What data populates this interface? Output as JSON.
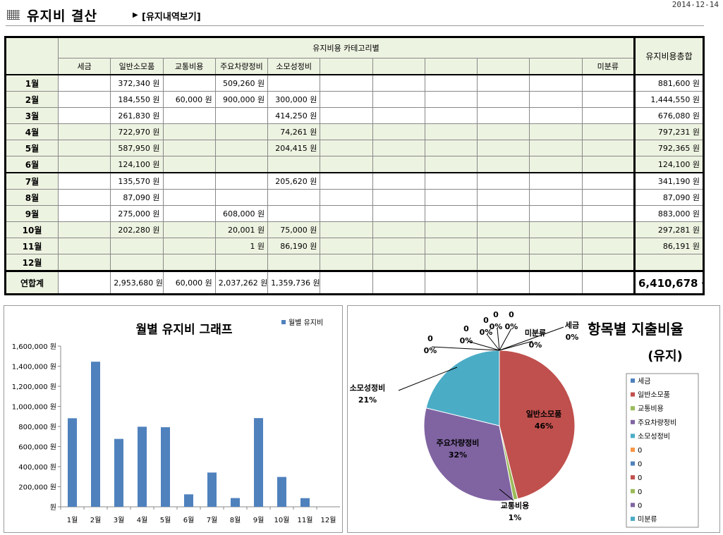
{
  "date": "2014-12-14",
  "header": {
    "title": "유지비 결산",
    "link": "[유지내역보기]"
  },
  "table": {
    "category_group": "유지비용 카테고리별",
    "total_header": "유지비용총합",
    "columns": [
      "세금",
      "일반소모품",
      "교통비용",
      "주요차량정비",
      "소모성정비",
      "",
      "",
      "",
      "",
      "",
      "미분류"
    ],
    "rows": [
      {
        "month": "1월",
        "cells": [
          "",
          "372,340 원",
          "",
          "509,260 원",
          "",
          "",
          "",
          "",
          "",
          "",
          ""
        ],
        "total": "881,600 원"
      },
      {
        "month": "2월",
        "cells": [
          "",
          "184,550 원",
          "60,000 원",
          "900,000 원",
          "300,000 원",
          "",
          "",
          "",
          "",
          "",
          ""
        ],
        "total": "1,444,550 원"
      },
      {
        "month": "3월",
        "cells": [
          "",
          "261,830 원",
          "",
          "",
          "414,250 원",
          "",
          "",
          "",
          "",
          "",
          ""
        ],
        "total": "676,080 원"
      },
      {
        "month": "4월",
        "cells": [
          "",
          "722,970 원",
          "",
          "",
          "74,261 원",
          "",
          "",
          "",
          "",
          "",
          ""
        ],
        "total": "797,231 원"
      },
      {
        "month": "5월",
        "cells": [
          "",
          "587,950 원",
          "",
          "",
          "204,415 원",
          "",
          "",
          "",
          "",
          "",
          ""
        ],
        "total": "792,365 원"
      },
      {
        "month": "6월",
        "cells": [
          "",
          "124,100 원",
          "",
          "",
          "",
          "",
          "",
          "",
          "",
          "",
          ""
        ],
        "total": "124,100 원"
      },
      {
        "month": "7월",
        "cells": [
          "",
          "135,570 원",
          "",
          "",
          "205,620 원",
          "",
          "",
          "",
          "",
          "",
          ""
        ],
        "total": "341,190 원"
      },
      {
        "month": "8월",
        "cells": [
          "",
          "87,090 원",
          "",
          "",
          "",
          "",
          "",
          "",
          "",
          "",
          ""
        ],
        "total": "87,090 원"
      },
      {
        "month": "9월",
        "cells": [
          "",
          "275,000 원",
          "",
          "608,000 원",
          "",
          "",
          "",
          "",
          "",
          "",
          ""
        ],
        "total": "883,000 원"
      },
      {
        "month": "10월",
        "cells": [
          "",
          "202,280 원",
          "",
          "20,001 원",
          "75,000 원",
          "",
          "",
          "",
          "",
          "",
          ""
        ],
        "total": "297,281 원"
      },
      {
        "month": "11월",
        "cells": [
          "",
          "",
          "",
          "1 원",
          "86,190 원",
          "",
          "",
          "",
          "",
          "",
          ""
        ],
        "total": "86,191 원"
      },
      {
        "month": "12월",
        "cells": [
          "",
          "",
          "",
          "",
          "",
          "",
          "",
          "",
          "",
          "",
          ""
        ],
        "total": ""
      }
    ],
    "total_row": {
      "label": "연합계",
      "cells": [
        "",
        "2,953,680 원",
        "60,000 원",
        "2,037,262 원",
        "1,359,736 원",
        "",
        "",
        "",
        "",
        "",
        ""
      ],
      "total": "6,410,678 원"
    }
  },
  "chart_data": [
    {
      "type": "bar",
      "title": "월별 유지비 그래프",
      "legend": "월별 유지비",
      "legend_position": "top-right",
      "categories": [
        "1월",
        "2월",
        "3월",
        "4월",
        "5월",
        "6월",
        "7월",
        "8월",
        "9월",
        "10월",
        "11월",
        "12월"
      ],
      "values": [
        881600,
        1444550,
        676080,
        797231,
        792365,
        124100,
        341190,
        87090,
        883000,
        297281,
        86191,
        0
      ],
      "ylim": [
        0,
        1600000
      ],
      "yticks": [
        "원",
        "200,000 원",
        "400,000 원",
        "600,000 원",
        "800,000 원",
        "1,000,000 원",
        "1,200,000 원",
        "1,400,000 원",
        "1,600,000 원"
      ],
      "color": "#4f81bd",
      "grid": false
    },
    {
      "type": "pie",
      "title_line1": "항목별 지출비율",
      "title_line2": "(유지)",
      "slices": [
        {
          "name": "세금",
          "value": 0,
          "pct": "0%",
          "color": "#4f81bd"
        },
        {
          "name": "일반소모품",
          "value": 2953680,
          "pct": "46%",
          "color": "#c0504d"
        },
        {
          "name": "교통비용",
          "value": 60000,
          "pct": "1%",
          "color": "#9bbb59"
        },
        {
          "name": "주요차량정비",
          "value": 2037262,
          "pct": "32%",
          "color": "#8064a2"
        },
        {
          "name": "소모성정비",
          "value": 1359736,
          "pct": "21%",
          "color": "#4bacc6"
        },
        {
          "name": "0",
          "value": 0,
          "pct": "0%",
          "color": "#f79646"
        },
        {
          "name": "0",
          "value": 0,
          "pct": "0%",
          "color": "#4f81bd"
        },
        {
          "name": "0",
          "value": 0,
          "pct": "0%",
          "color": "#c0504d"
        },
        {
          "name": "0",
          "value": 0,
          "pct": "0%",
          "color": "#9bbb59"
        },
        {
          "name": "0",
          "value": 0,
          "pct": "0%",
          "color": "#8064a2"
        },
        {
          "name": "미분류",
          "value": 0,
          "pct": "0%",
          "color": "#4bacc6"
        }
      ],
      "legend_position": "right"
    }
  ]
}
